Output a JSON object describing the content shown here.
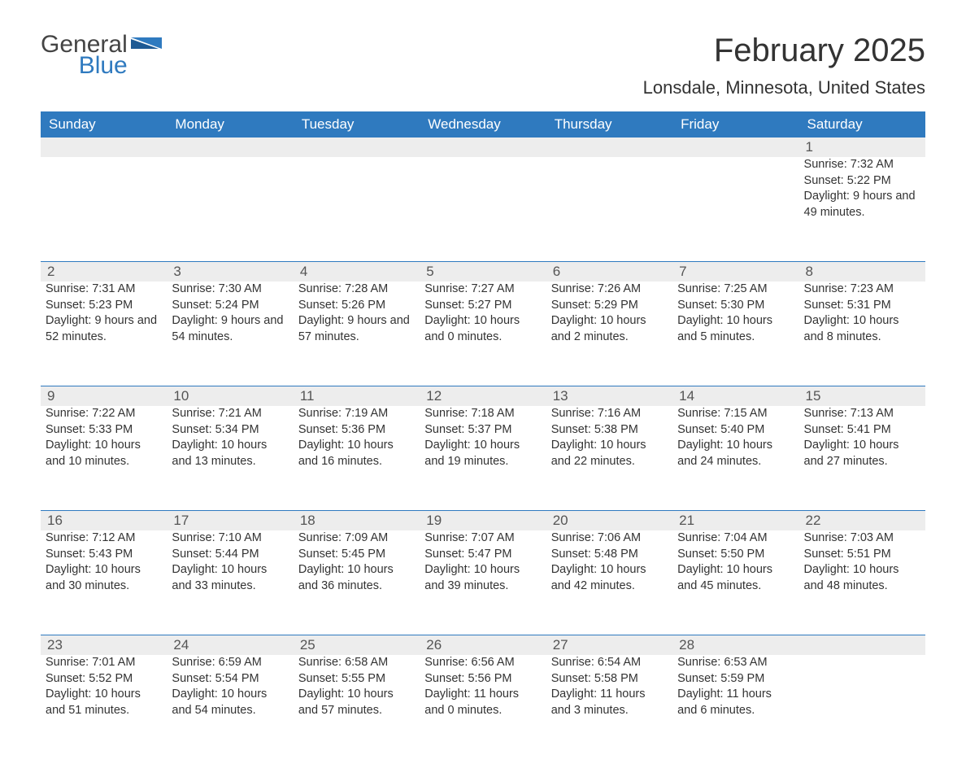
{
  "logo": {
    "general": "General",
    "blue": "Blue"
  },
  "title": "February 2025",
  "location": "Lonsdale, Minnesota, United States",
  "colors": {
    "header_bg": "#2f7abf",
    "header_text": "#ffffff",
    "daynum_bg": "#ededed",
    "border": "#2f7abf",
    "text": "#333333"
  },
  "day_headers": [
    "Sunday",
    "Monday",
    "Tuesday",
    "Wednesday",
    "Thursday",
    "Friday",
    "Saturday"
  ],
  "weeks": [
    [
      {
        "n": "",
        "sr": "",
        "ss": "",
        "dl": ""
      },
      {
        "n": "",
        "sr": "",
        "ss": "",
        "dl": ""
      },
      {
        "n": "",
        "sr": "",
        "ss": "",
        "dl": ""
      },
      {
        "n": "",
        "sr": "",
        "ss": "",
        "dl": ""
      },
      {
        "n": "",
        "sr": "",
        "ss": "",
        "dl": ""
      },
      {
        "n": "",
        "sr": "",
        "ss": "",
        "dl": ""
      },
      {
        "n": "1",
        "sr": "Sunrise: 7:32 AM",
        "ss": "Sunset: 5:22 PM",
        "dl": "Daylight: 9 hours and 49 minutes."
      }
    ],
    [
      {
        "n": "2",
        "sr": "Sunrise: 7:31 AM",
        "ss": "Sunset: 5:23 PM",
        "dl": "Daylight: 9 hours and 52 minutes."
      },
      {
        "n": "3",
        "sr": "Sunrise: 7:30 AM",
        "ss": "Sunset: 5:24 PM",
        "dl": "Daylight: 9 hours and 54 minutes."
      },
      {
        "n": "4",
        "sr": "Sunrise: 7:28 AM",
        "ss": "Sunset: 5:26 PM",
        "dl": "Daylight: 9 hours and 57 minutes."
      },
      {
        "n": "5",
        "sr": "Sunrise: 7:27 AM",
        "ss": "Sunset: 5:27 PM",
        "dl": "Daylight: 10 hours and 0 minutes."
      },
      {
        "n": "6",
        "sr": "Sunrise: 7:26 AM",
        "ss": "Sunset: 5:29 PM",
        "dl": "Daylight: 10 hours and 2 minutes."
      },
      {
        "n": "7",
        "sr": "Sunrise: 7:25 AM",
        "ss": "Sunset: 5:30 PM",
        "dl": "Daylight: 10 hours and 5 minutes."
      },
      {
        "n": "8",
        "sr": "Sunrise: 7:23 AM",
        "ss": "Sunset: 5:31 PM",
        "dl": "Daylight: 10 hours and 8 minutes."
      }
    ],
    [
      {
        "n": "9",
        "sr": "Sunrise: 7:22 AM",
        "ss": "Sunset: 5:33 PM",
        "dl": "Daylight: 10 hours and 10 minutes."
      },
      {
        "n": "10",
        "sr": "Sunrise: 7:21 AM",
        "ss": "Sunset: 5:34 PM",
        "dl": "Daylight: 10 hours and 13 minutes."
      },
      {
        "n": "11",
        "sr": "Sunrise: 7:19 AM",
        "ss": "Sunset: 5:36 PM",
        "dl": "Daylight: 10 hours and 16 minutes."
      },
      {
        "n": "12",
        "sr": "Sunrise: 7:18 AM",
        "ss": "Sunset: 5:37 PM",
        "dl": "Daylight: 10 hours and 19 minutes."
      },
      {
        "n": "13",
        "sr": "Sunrise: 7:16 AM",
        "ss": "Sunset: 5:38 PM",
        "dl": "Daylight: 10 hours and 22 minutes."
      },
      {
        "n": "14",
        "sr": "Sunrise: 7:15 AM",
        "ss": "Sunset: 5:40 PM",
        "dl": "Daylight: 10 hours and 24 minutes."
      },
      {
        "n": "15",
        "sr": "Sunrise: 7:13 AM",
        "ss": "Sunset: 5:41 PM",
        "dl": "Daylight: 10 hours and 27 minutes."
      }
    ],
    [
      {
        "n": "16",
        "sr": "Sunrise: 7:12 AM",
        "ss": "Sunset: 5:43 PM",
        "dl": "Daylight: 10 hours and 30 minutes."
      },
      {
        "n": "17",
        "sr": "Sunrise: 7:10 AM",
        "ss": "Sunset: 5:44 PM",
        "dl": "Daylight: 10 hours and 33 minutes."
      },
      {
        "n": "18",
        "sr": "Sunrise: 7:09 AM",
        "ss": "Sunset: 5:45 PM",
        "dl": "Daylight: 10 hours and 36 minutes."
      },
      {
        "n": "19",
        "sr": "Sunrise: 7:07 AM",
        "ss": "Sunset: 5:47 PM",
        "dl": "Daylight: 10 hours and 39 minutes."
      },
      {
        "n": "20",
        "sr": "Sunrise: 7:06 AM",
        "ss": "Sunset: 5:48 PM",
        "dl": "Daylight: 10 hours and 42 minutes."
      },
      {
        "n": "21",
        "sr": "Sunrise: 7:04 AM",
        "ss": "Sunset: 5:50 PM",
        "dl": "Daylight: 10 hours and 45 minutes."
      },
      {
        "n": "22",
        "sr": "Sunrise: 7:03 AM",
        "ss": "Sunset: 5:51 PM",
        "dl": "Daylight: 10 hours and 48 minutes."
      }
    ],
    [
      {
        "n": "23",
        "sr": "Sunrise: 7:01 AM",
        "ss": "Sunset: 5:52 PM",
        "dl": "Daylight: 10 hours and 51 minutes."
      },
      {
        "n": "24",
        "sr": "Sunrise: 6:59 AM",
        "ss": "Sunset: 5:54 PM",
        "dl": "Daylight: 10 hours and 54 minutes."
      },
      {
        "n": "25",
        "sr": "Sunrise: 6:58 AM",
        "ss": "Sunset: 5:55 PM",
        "dl": "Daylight: 10 hours and 57 minutes."
      },
      {
        "n": "26",
        "sr": "Sunrise: 6:56 AM",
        "ss": "Sunset: 5:56 PM",
        "dl": "Daylight: 11 hours and 0 minutes."
      },
      {
        "n": "27",
        "sr": "Sunrise: 6:54 AM",
        "ss": "Sunset: 5:58 PM",
        "dl": "Daylight: 11 hours and 3 minutes."
      },
      {
        "n": "28",
        "sr": "Sunrise: 6:53 AM",
        "ss": "Sunset: 5:59 PM",
        "dl": "Daylight: 11 hours and 6 minutes."
      },
      {
        "n": "",
        "sr": "",
        "ss": "",
        "dl": ""
      }
    ]
  ]
}
